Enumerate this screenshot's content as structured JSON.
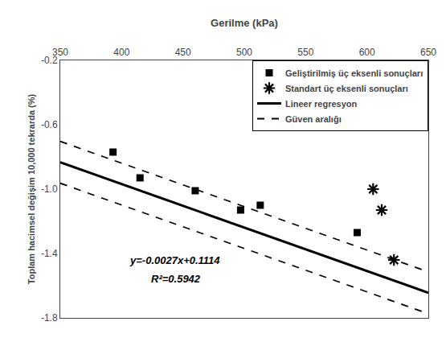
{
  "chart_data": {
    "type": "scatter",
    "x_label": "Gerilme (kPa)",
    "y_label": "Toplam hacimsel değişim 10,000 tekrarda (%)",
    "xlim": [
      350,
      650
    ],
    "ylim": [
      -1.8,
      -0.2
    ],
    "xticks": [
      350,
      400,
      450,
      500,
      550,
      600,
      650
    ],
    "yticks": [
      -0.2,
      -0.6,
      {
        "value": -1.0,
        "label": "-1.0"
      },
      -1.4,
      -1.8
    ],
    "grid": false,
    "legend": "upper right",
    "color": "#000000",
    "series": [
      {
        "name": "Geliştirilmiş üç eksenli sonuçları",
        "type": "scatter",
        "marker": "square",
        "x": [
          393,
          415,
          460,
          497,
          513,
          592
        ],
        "values": [
          -0.77,
          -0.93,
          -1.01,
          -1.13,
          -1.1,
          -1.27
        ]
      },
      {
        "name": "Standart üç eksenli sonuçları",
        "type": "scatter",
        "marker": "asterisk",
        "x": [
          605,
          612,
          622
        ],
        "values": [
          -1.0,
          -1.13,
          -1.44
        ]
      },
      {
        "name": "Lineer regresyon",
        "type": "line",
        "line_style": "solid",
        "x": [
          350,
          650
        ],
        "values": [
          -0.8336,
          -1.6436
        ]
      },
      {
        "name": "Güven aralığı",
        "type": "line",
        "line_style": "dashed",
        "x": [
          350,
          650
        ],
        "values": [
          -0.7036,
          -1.5136
        ]
      },
      {
        "name": "Güven aralığı",
        "type": "line",
        "line_style": "dashed",
        "x": [
          350,
          650
        ],
        "values": [
          -0.9636,
          -1.7736
        ]
      }
    ],
    "annotations": [
      {
        "text": "y=-0.0027x+0.1114",
        "x": 405,
        "y": -1.49
      },
      {
        "text": "R²=0.5942",
        "x": 423,
        "y": -1.605
      }
    ]
  }
}
